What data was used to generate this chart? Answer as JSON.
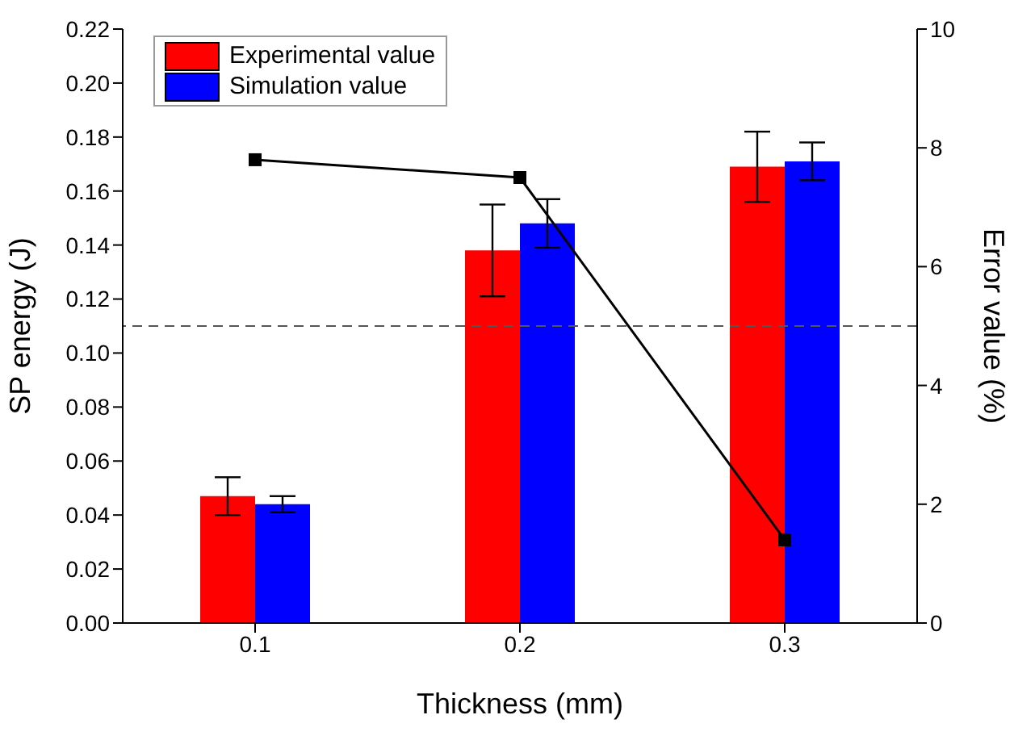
{
  "chart_data": {
    "type": "bar",
    "xlabel": "Thickness (mm)",
    "ylabel": "SP energy (J)",
    "y2label": "Error value (%)",
    "categories": [
      "0.1",
      "0.2",
      "0.3"
    ],
    "series": [
      {
        "name": "Experimental value",
        "color": "#ff0000",
        "values": [
          0.047,
          0.138,
          0.169
        ],
        "errors": [
          0.007,
          0.017,
          0.013
        ]
      },
      {
        "name": "Simulation value",
        "color": "#0000ff",
        "values": [
          0.044,
          0.148,
          0.171
        ],
        "errors": [
          0.003,
          0.009,
          0.007
        ]
      },
      {
        "type": "line",
        "axis": "y2",
        "color": "#000000",
        "marker": "square",
        "values": [
          7.8,
          7.5,
          1.4
        ]
      }
    ],
    "ylim": [
      0,
      0.22
    ],
    "yticks": [
      {
        "value": 0,
        "label": "0.00"
      },
      {
        "value": 0.02,
        "label": "0.02"
      },
      {
        "value": 0.04,
        "label": "0.04"
      },
      {
        "value": 0.06,
        "label": "0.06"
      },
      {
        "value": 0.08,
        "label": "0.08"
      },
      {
        "value": 0.1,
        "label": "0.10"
      },
      {
        "value": 0.12,
        "label": "0.12"
      },
      {
        "value": 0.14,
        "label": "0.14"
      },
      {
        "value": 0.16,
        "label": "0.16"
      },
      {
        "value": 0.18,
        "label": "0.18"
      },
      {
        "value": 0.2,
        "label": "0.20"
      },
      {
        "value": 0.22,
        "label": "0.22"
      }
    ],
    "y2lim": [
      0,
      10
    ],
    "y2ticks": [
      0,
      2,
      4,
      6,
      8,
      10
    ],
    "ref_lines": [
      {
        "axis": "y2",
        "value": 5,
        "color": "#555555",
        "line_style": "dashed"
      }
    ],
    "legend": "top left",
    "grid": false
  }
}
